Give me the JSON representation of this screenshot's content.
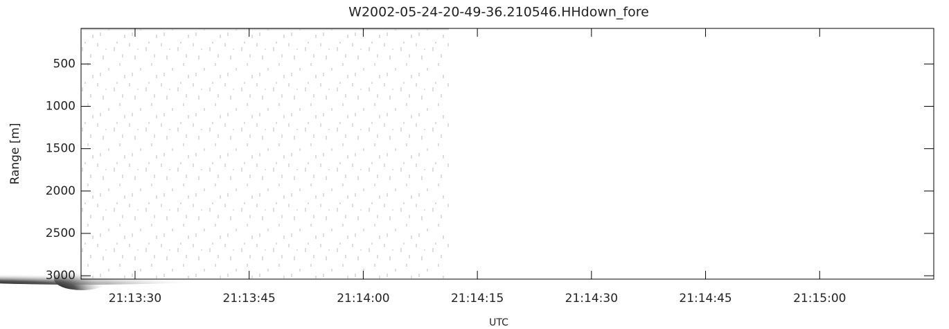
{
  "chart_data": {
    "type": "image",
    "title": "W2002-05-24-20-49-36.210546.HHdown_fore",
    "x_label": "UTC",
    "y_label": "Range [m]",
    "xlim": [
      76402.9,
      76515
    ],
    "xticks": [
      {
        "value": 76410,
        "label": "21:13:30"
      },
      {
        "value": 76425,
        "label": "21:13:45"
      },
      {
        "value": 76440,
        "label": "21:14:00"
      },
      {
        "value": 76455,
        "label": "21:14:15"
      },
      {
        "value": 76470,
        "label": "21:14:30"
      },
      {
        "value": 76485,
        "label": "21:14:45"
      },
      {
        "value": 76500,
        "label": "21:15:00"
      }
    ],
    "ylim": [
      80,
      3040
    ],
    "yticks": [
      500,
      1000,
      1500,
      2000,
      2500,
      3000
    ],
    "y_inverted": true
  }
}
